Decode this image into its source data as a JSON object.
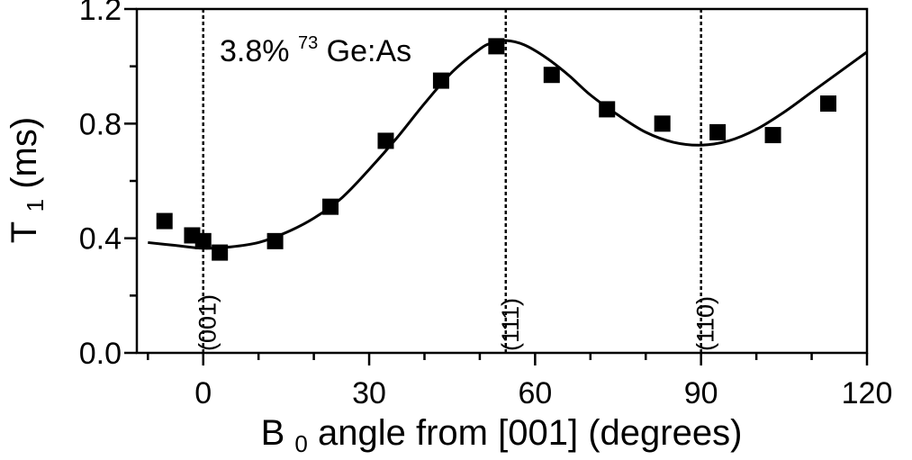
{
  "chart_data": {
    "type": "scatter",
    "xlabel_main": "B",
    "xlabel_sub": "0",
    "xlabel_rest": " angle from [001] (degrees)",
    "ylabel_main": "T",
    "ylabel_sub": "1",
    "ylabel_rest": " (ms)",
    "xlim": [
      -12,
      120
    ],
    "ylim": [
      0.0,
      1.2
    ],
    "xticks": [
      0,
      30,
      60,
      90,
      120
    ],
    "xtick_labels": [
      "0",
      "30",
      "60",
      "90",
      "120"
    ],
    "yticks": [
      0.0,
      0.4,
      0.8,
      1.2
    ],
    "ytick_labels": [
      "0.0",
      "0.4",
      "0.8",
      "1.2"
    ],
    "annotation": {
      "prefix": "3.8%",
      "sup": "73",
      "suffix": "Ge:As"
    },
    "vlines": [
      {
        "x": 0,
        "label": "(001)"
      },
      {
        "x": 54.7,
        "label": "(111)"
      },
      {
        "x": 90,
        "label": "(110)"
      }
    ],
    "series": [
      {
        "kind": "scatter",
        "marker": "square",
        "color": "#000000",
        "x": [
          -7,
          -2,
          0,
          3,
          13,
          23,
          33,
          43,
          53,
          63,
          73,
          83,
          93,
          103,
          113
        ],
        "y": [
          0.46,
          0.41,
          0.39,
          0.35,
          0.39,
          0.51,
          0.74,
          0.95,
          1.07,
          0.97,
          0.85,
          0.8,
          0.77,
          0.76,
          0.87
        ]
      },
      {
        "kind": "line",
        "color": "#000000",
        "x": [
          -10,
          -5,
          0,
          5,
          10,
          15,
          20,
          25,
          30,
          35,
          40,
          45,
          50,
          52,
          54.7,
          58,
          62,
          66,
          70,
          75,
          80,
          85,
          90,
          95,
          100,
          105,
          110,
          115,
          120
        ],
        "y": [
          0.385,
          0.375,
          0.365,
          0.37,
          0.385,
          0.42,
          0.47,
          0.54,
          0.64,
          0.75,
          0.87,
          0.98,
          1.06,
          1.08,
          1.09,
          1.075,
          1.03,
          0.97,
          0.9,
          0.83,
          0.77,
          0.735,
          0.725,
          0.74,
          0.78,
          0.84,
          0.91,
          0.98,
          1.05
        ]
      }
    ],
    "grid": false,
    "legend": "none"
  }
}
